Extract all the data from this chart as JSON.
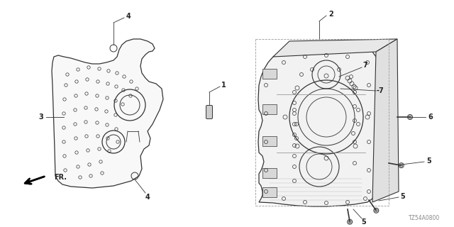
{
  "background_color": "#ffffff",
  "figure_width": 6.4,
  "figure_height": 3.2,
  "dpi": 100,
  "watermark": "TZ54A0800"
}
